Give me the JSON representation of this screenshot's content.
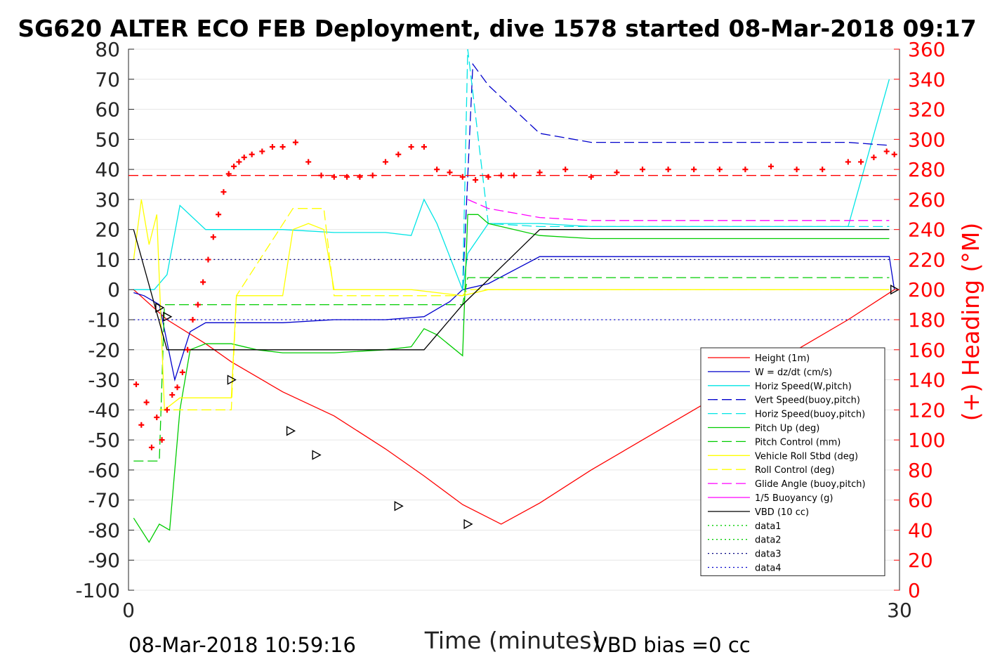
{
  "title": "SG620 ALTER ECO FEB Deployment, dive 1578 started 08-Mar-2018 09:17",
  "footer": {
    "left": "08-Mar-2018 10:59:16",
    "right": "VBD bias =0 cc"
  },
  "chart_data": {
    "type": "line",
    "title": "SG620 ALTER ECO FEB Deployment, dive 1578 started 08-Mar-2018 09:17",
    "xlabel": "Time (minutes)",
    "ylabel_right": "(+) Heading (°M)",
    "xlim": [
      0,
      30
    ],
    "ylim": [
      -100,
      80
    ],
    "ylim_right": [
      0,
      360
    ],
    "x_ticks": [
      "0",
      "30"
    ],
    "y_ticks": [
      "80",
      "70",
      "60",
      "50",
      "40",
      "30",
      "20",
      "10",
      "0",
      "-10",
      "-20",
      "-30",
      "-40",
      "-50",
      "-60",
      "-70",
      "-80",
      "-90",
      "-100"
    ],
    "y_right_ticks": [
      "360",
      "340",
      "320",
      "300",
      "280",
      "260",
      "240",
      "220",
      "200",
      "180",
      "160",
      "140",
      "120",
      "100",
      "80",
      "60",
      "40",
      "20",
      "0"
    ],
    "grid": "horizontal",
    "legend_position": "bottom-right",
    "colors": {
      "axis_right": "#ff0000",
      "red": "#ff0000",
      "blue": "#0000cc",
      "cyan": "#00e5e5",
      "green": "#00cc00",
      "yellow": "#ffff00",
      "magenta": "#ff00ff",
      "black": "#000000"
    },
    "legend": [
      {
        "name": "Height (1m)",
        "color": "#ff0000",
        "style": "solid"
      },
      {
        "name": "W = dz/dt (cm/s)",
        "color": "#0000cc",
        "style": "solid"
      },
      {
        "name": "Horiz Speed(W,pitch)",
        "color": "#00e5e5",
        "style": "solid"
      },
      {
        "name": "Vert Speed(buoy,pitch)",
        "color": "#0000cc",
        "style": "dashed"
      },
      {
        "name": "Horiz Speed(buoy,pitch)",
        "color": "#00e5e5",
        "style": "dashed"
      },
      {
        "name": "Pitch Up (deg)",
        "color": "#00cc00",
        "style": "solid"
      },
      {
        "name": "Pitch Control (mm)",
        "color": "#00cc00",
        "style": "dashed"
      },
      {
        "name": "Vehicle Roll Stbd (deg)",
        "color": "#ffff00",
        "style": "solid"
      },
      {
        "name": "Roll Control (deg)",
        "color": "#ffff00",
        "style": "dashed"
      },
      {
        "name": "Glide Angle (buoy,pitch)",
        "color": "#ff00ff",
        "style": "dashed"
      },
      {
        "name": "1/5 Buoyancy (g)",
        "color": "#ff00ff",
        "style": "solid"
      },
      {
        "name": "VBD (10 cc)",
        "color": "#000000",
        "style": "solid"
      },
      {
        "name": "data1",
        "color": "#00cc00",
        "style": "dotted"
      },
      {
        "name": "data2",
        "color": "#00cc00",
        "style": "dotted"
      },
      {
        "name": "data3",
        "color": "#000080",
        "style": "dotted"
      },
      {
        "name": "data4",
        "color": "#0000cc",
        "style": "dotted"
      }
    ],
    "series": [
      {
        "name": "Height (1m)",
        "color": "#ff0000",
        "style": "solid",
        "x": [
          0.2,
          1.5,
          3,
          4,
          6,
          8,
          10,
          11.5,
          13,
          14.5,
          16,
          18,
          20,
          22,
          24,
          26,
          28,
          29.8
        ],
        "y": [
          0,
          -10,
          -18,
          -24,
          -34,
          -42,
          -53,
          -62,
          -71.5,
          -78,
          -71,
          -60,
          -50,
          -40,
          -30,
          -20,
          -10,
          0
        ]
      },
      {
        "name": "W = dz/dt (cm/s)",
        "color": "#0000cc",
        "style": "solid",
        "x": [
          0.2,
          0.6,
          1.2,
          1.8,
          2.4,
          3,
          4,
          6,
          8,
          10,
          11.5,
          12.5,
          13,
          14,
          16,
          18,
          20,
          22,
          24,
          26,
          28,
          29.6,
          29.8
        ],
        "y": [
          -1,
          -2,
          -5,
          -30,
          -14,
          -11,
          -11,
          -11,
          -10,
          -10,
          -9,
          -4,
          0,
          2,
          11,
          11,
          11,
          11,
          11,
          11,
          11,
          11,
          0
        ]
      },
      {
        "name": "Horiz Speed(W,pitch)",
        "color": "#00e5e5",
        "style": "solid",
        "x": [
          0.2,
          1,
          1.5,
          2,
          3,
          4,
          6,
          8,
          10,
          11,
          11.5,
          12,
          13,
          13.2,
          14,
          16,
          18,
          20,
          22,
          24,
          26,
          28,
          29.6
        ],
        "y": [
          0,
          0,
          5,
          28,
          20,
          20,
          20,
          19,
          19,
          18,
          30,
          22,
          0,
          12,
          22,
          22,
          21,
          21,
          21,
          21,
          21,
          21,
          70
        ]
      },
      {
        "name": "Vert Speed(buoy,pitch)",
        "color": "#0000cc",
        "style": "dashed",
        "x": [
          13,
          13.4,
          14,
          15,
          16,
          18,
          20,
          22,
          24,
          26,
          28,
          29.6
        ],
        "y": [
          0,
          75,
          68,
          60,
          52,
          49,
          49,
          49,
          49,
          49,
          49,
          48
        ]
      },
      {
        "name": "Horiz Speed(buoy,pitch)",
        "color": "#00e5e5",
        "style": "dashed",
        "x": [
          13,
          13.2,
          14,
          16,
          18,
          20,
          22,
          24,
          26,
          28,
          29.6
        ],
        "y": [
          0,
          80,
          22,
          21,
          21,
          21,
          21,
          21,
          21,
          21,
          21
        ]
      },
      {
        "name": "Pitch Up (deg)",
        "color": "#00cc00",
        "style": "solid",
        "x": [
          0.2,
          0.8,
          1.2,
          1.6,
          2,
          2.4,
          3,
          4,
          5,
          6,
          8,
          10,
          11,
          11.5,
          12,
          13,
          13.2,
          13.6,
          14,
          16,
          18,
          20,
          22,
          24,
          26,
          28,
          29.6
        ],
        "y": [
          -76,
          -84,
          -78,
          -80,
          -40,
          -20,
          -18,
          -18,
          -20,
          -21,
          -21,
          -20,
          -19,
          -13,
          -15,
          -22,
          25,
          25,
          22,
          18,
          17,
          17,
          17,
          17,
          17,
          17,
          17
        ]
      },
      {
        "name": "Pitch Control (mm)",
        "color": "#00cc00",
        "style": "dashed",
        "x": [
          0.2,
          1.2,
          1.4,
          3,
          6,
          10,
          13,
          13.2,
          29.6
        ],
        "y": [
          -57,
          -57,
          -5,
          -5,
          -5,
          -5,
          -5,
          4,
          4
        ]
      },
      {
        "name": "Vehicle Roll Stbd (deg)",
        "color": "#ffff00",
        "style": "solid",
        "x": [
          0.2,
          0.5,
          0.8,
          1.1,
          1.4,
          2,
          3,
          4,
          4.2,
          5,
          6,
          6.4,
          7,
          7.6,
          8,
          9,
          10,
          11,
          13,
          14,
          16,
          18,
          20,
          22,
          24,
          26,
          28,
          29.6
        ],
        "y": [
          10,
          30,
          15,
          25,
          -40,
          -36,
          -36,
          -36,
          -2,
          -2,
          -2,
          20,
          22,
          20,
          0,
          0,
          0,
          0,
          -2,
          0,
          0,
          0,
          0,
          0,
          0,
          0,
          0,
          0
        ]
      },
      {
        "name": "Roll Control (deg)",
        "color": "#ffff00",
        "style": "dashed",
        "x": [
          1.2,
          1.4,
          4,
          4.2,
          6.4,
          7.6,
          8,
          13,
          13.2,
          29.6
        ],
        "y": [
          -40,
          -40,
          -40,
          -2,
          27,
          27,
          -2,
          -2,
          0,
          0
        ]
      },
      {
        "name": "Glide Angle (buoy,pitch)",
        "color": "#ff00ff",
        "style": "dashed",
        "x": [
          13.2,
          14,
          16,
          18,
          20,
          22,
          24,
          26,
          28,
          29.6
        ],
        "y": [
          30,
          27,
          24,
          23,
          23,
          23,
          23,
          23,
          23,
          23
        ]
      },
      {
        "name": "VBD (10 cc)",
        "color": "#000000",
        "style": "solid",
        "x": [
          0.2,
          1.5,
          4,
          6,
          8,
          10,
          11.5,
          13,
          16,
          18,
          20,
          22,
          24,
          26,
          28,
          29.6
        ],
        "y": [
          20,
          -20,
          -20,
          -20,
          -20,
          -20,
          -20,
          -5,
          20,
          20,
          20,
          20,
          20,
          20,
          20,
          20
        ]
      },
      {
        "name": "data3",
        "color": "#000080",
        "style": "dotted",
        "x": [
          0.2,
          29.6
        ],
        "y": [
          10,
          10
        ]
      },
      {
        "name": "data4",
        "color": "#0000cc",
        "style": "dotted",
        "x": [
          0.2,
          29.6
        ],
        "y": [
          -10,
          -10
        ]
      },
      {
        "name": "Heading reference",
        "color": "#ff0000",
        "style": "dashed",
        "axis": "right",
        "x": [
          0,
          30
        ],
        "y": [
          276,
          276
        ]
      }
    ],
    "heading_points": {
      "axis": "right",
      "color": "#ff0000",
      "marker": "+",
      "x": [
        0.3,
        0.5,
        0.7,
        0.9,
        1.1,
        1.3,
        1.5,
        1.7,
        1.9,
        2.1,
        2.3,
        2.5,
        2.7,
        2.9,
        3.1,
        3.3,
        3.5,
        3.7,
        3.9,
        4.1,
        4.3,
        4.5,
        4.8,
        5.2,
        5.6,
        6,
        6.5,
        7,
        7.5,
        8,
        8.5,
        9,
        9.5,
        10,
        10.5,
        11,
        11.5,
        12,
        12.5,
        13,
        13.5,
        14,
        14.5,
        15,
        16,
        17,
        18,
        19,
        20,
        21,
        22,
        23,
        24,
        25,
        26,
        27,
        28,
        28.5,
        29,
        29.5,
        29.8
      ],
      "y": [
        137,
        110,
        125,
        95,
        115,
        100,
        120,
        130,
        135,
        145,
        160,
        180,
        190,
        205,
        220,
        235,
        250,
        265,
        277,
        282,
        285,
        288,
        290,
        292,
        295,
        295,
        298,
        285,
        276,
        275,
        275,
        275,
        276,
        285,
        290,
        295,
        295,
        280,
        278,
        275,
        273,
        275,
        276,
        276,
        278,
        280,
        275,
        278,
        280,
        280,
        280,
        280,
        280,
        282,
        280,
        280,
        285,
        285,
        288,
        292,
        290
      ]
    },
    "markers": {
      "color": "#000000",
      "marker": "triangle",
      "x": [
        1.2,
        1.5,
        4,
        6.3,
        7.3,
        10.5,
        13.2,
        29.8
      ],
      "y": [
        -6,
        -9,
        -30,
        -47,
        -55,
        -72,
        -78,
        0
      ]
    }
  }
}
